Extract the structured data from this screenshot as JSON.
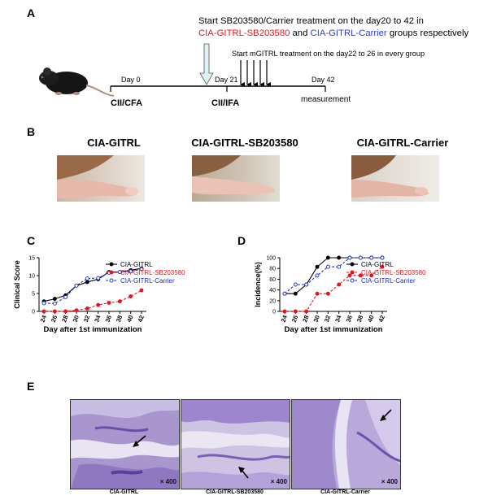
{
  "panel_a": {
    "letter": "A",
    "treatment_line1": "Start SB203580/Carrier treatment on the day20 to 42 in",
    "treatment_line2_red": "CIA-GITRL-SB203580",
    "treatment_line2_and": " and ",
    "treatment_line2_blue": "CIA-GITRL-Carrier",
    "treatment_line2_tail": " groups respectively",
    "mgitrl_text": "Start mGITRL treatment on the day22 to 26 in every group",
    "day0": "Day 0",
    "day21": "Day 21",
    "day42": "Day 42",
    "cfa": "CII/CFA",
    "ifa": "CII/IFA",
    "measurement": "measurement"
  },
  "panel_b": {
    "letter": "B",
    "titles": [
      "CIA-GITRL",
      "CIA-GITRL-SB203580",
      "CIA-GITRL-Carrier"
    ]
  },
  "panel_c": {
    "letter": "C"
  },
  "panel_d": {
    "letter": "D"
  },
  "panel_e": {
    "letter": "E",
    "magnification": "× 400",
    "captions": [
      "CIA-GITRL",
      "CIA-GITRL-SB203580",
      "CIA-GITRL-Carrier"
    ]
  },
  "colors": {
    "gitrl": "#000000",
    "sb203580": "#e8141c",
    "carrier": "#2a3fd6",
    "line_red": "#e8141c",
    "line_blue": "#1a2fd0"
  },
  "chart_data": [
    {
      "type": "line",
      "ylabel": "Clinical Score",
      "xlabel": "Day after 1st immunization",
      "x": [
        24,
        26,
        28,
        30,
        32,
        34,
        36,
        38,
        40,
        42
      ],
      "ylim": [
        0,
        15
      ],
      "yticks": [
        0,
        5,
        10,
        15
      ],
      "legend_position": "top-right",
      "series": [
        {
          "name": "CIA-GITRL",
          "values": [
            2.8,
            3.5,
            4.5,
            7.2,
            8.2,
            9.0,
            11.0,
            11.0,
            11.5,
            12.0
          ]
        },
        {
          "name": "CIA-GITRL-SB203580",
          "values": [
            0,
            0,
            0,
            0.3,
            0.8,
            1.8,
            2.4,
            2.8,
            4.2,
            5.9
          ]
        },
        {
          "name": "CIA-GITRL-Carrier",
          "values": [
            2.3,
            2.2,
            4.0,
            7.2,
            9.2,
            9.3,
            10.8,
            11.0,
            11.2,
            11.8
          ]
        }
      ]
    },
    {
      "type": "line",
      "ylabel": "Incidence(%)",
      "xlabel": "Day after 1st immunization",
      "x": [
        24,
        26,
        28,
        30,
        32,
        34,
        36,
        38,
        40,
        42
      ],
      "ylim": [
        0,
        100
      ],
      "yticks": [
        0,
        20,
        40,
        60,
        80,
        100
      ],
      "legend_position": "top-right",
      "series": [
        {
          "name": "CIA-GITRL",
          "values": [
            33,
            33,
            50,
            83,
            100,
            100,
            100,
            100,
            100,
            100
          ]
        },
        {
          "name": "CIA-GITRL-SB203580",
          "values": [
            0,
            0,
            0,
            33,
            33,
            50,
            67,
            67,
            67,
            83
          ]
        },
        {
          "name": "CIA-GITRL-Carrier",
          "values": [
            33,
            50,
            50,
            67,
            83,
            83,
            100,
            100,
            100,
            100
          ]
        }
      ]
    }
  ]
}
